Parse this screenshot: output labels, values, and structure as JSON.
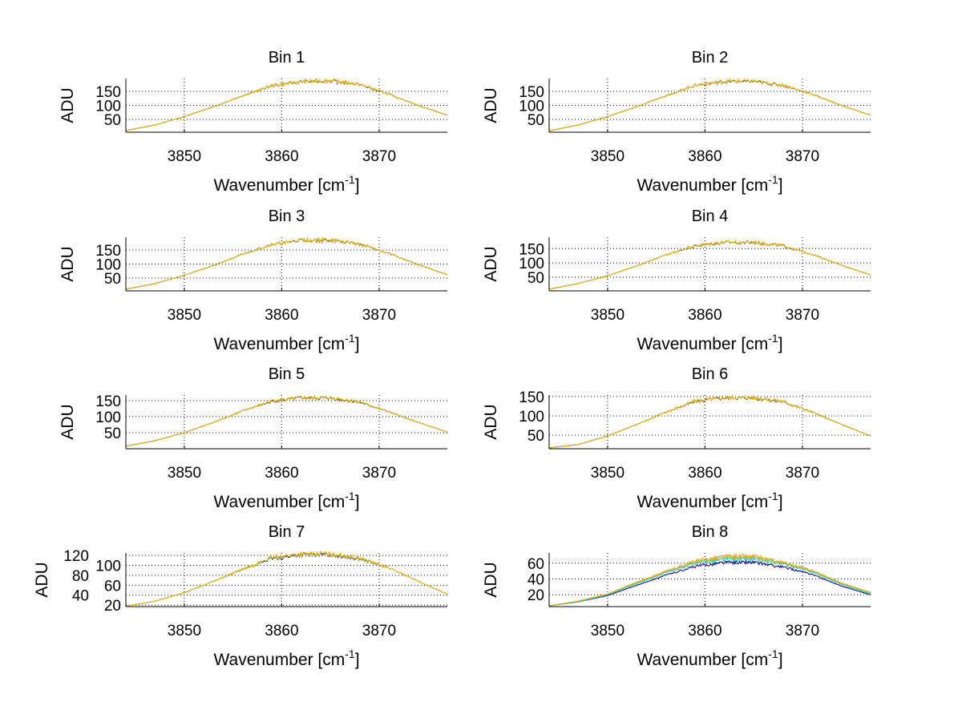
{
  "chart_data": [
    {
      "type": "line",
      "title": "Bin 1",
      "xlabel": "Wavenumber [cm",
      "xlabel_sup": "-1",
      "xlabel_end": "]",
      "ylabel": "ADU",
      "xlim": [
        3844,
        3877
      ],
      "ylim": [
        4,
        196
      ],
      "xticks": [
        3850,
        3860,
        3870
      ],
      "yticks": [
        50,
        100,
        150
      ],
      "grid": true,
      "x": [
        3844,
        3847,
        3850,
        3853,
        3856,
        3859,
        3862,
        3865,
        3868,
        3871,
        3874,
        3877
      ],
      "series": [
        {
          "name": "black",
          "color": "#000000",
          "values": [
            10,
            30,
            60,
            95,
            135,
            170,
            185,
            188,
            175,
            140,
            100,
            65
          ]
        },
        {
          "name": "yellow",
          "color": "#f5b800",
          "values": [
            10,
            30,
            60,
            95,
            135,
            170,
            186,
            189,
            176,
            140,
            100,
            65
          ]
        }
      ]
    },
    {
      "type": "line",
      "title": "Bin 2",
      "xlabel": "Wavenumber [cm",
      "xlabel_sup": "-1",
      "xlabel_end": "]",
      "ylabel": "ADU",
      "xlim": [
        3844,
        3877
      ],
      "ylim": [
        4,
        196
      ],
      "xticks": [
        3850,
        3860,
        3870
      ],
      "yticks": [
        50,
        100,
        150
      ],
      "grid": true,
      "x": [
        3844,
        3847,
        3850,
        3853,
        3856,
        3859,
        3862,
        3865,
        3868,
        3871,
        3874,
        3877
      ],
      "series": [
        {
          "name": "black",
          "color": "#000000",
          "values": [
            9,
            30,
            60,
            95,
            135,
            172,
            186,
            186,
            172,
            140,
            100,
            65
          ]
        },
        {
          "name": "yellow",
          "color": "#f5b800",
          "values": [
            9,
            30,
            60,
            95,
            135,
            172,
            187,
            187,
            173,
            140,
            100,
            65
          ]
        }
      ]
    },
    {
      "type": "line",
      "title": "Bin 3",
      "xlabel": "Wavenumber [cm",
      "xlabel_sup": "-1",
      "xlabel_end": "]",
      "ylabel": "ADU",
      "xlim": [
        3844,
        3877
      ],
      "ylim": [
        4,
        196
      ],
      "xticks": [
        3850,
        3860,
        3870
      ],
      "yticks": [
        50,
        100,
        150
      ],
      "grid": true,
      "x": [
        3844,
        3847,
        3850,
        3853,
        3856,
        3859,
        3862,
        3865,
        3868,
        3871,
        3874,
        3877
      ],
      "series": [
        {
          "name": "black",
          "color": "#000000",
          "values": [
            10,
            30,
            60,
            95,
            135,
            170,
            185,
            185,
            172,
            138,
            98,
            62
          ]
        },
        {
          "name": "yellow",
          "color": "#f5b800",
          "values": [
            10,
            30,
            60,
            95,
            135,
            170,
            186,
            186,
            173,
            138,
            98,
            62
          ]
        }
      ]
    },
    {
      "type": "line",
      "title": "Bin 4",
      "xlabel": "Wavenumber [cm",
      "xlabel_sup": "-1",
      "xlabel_end": "]",
      "ylabel": "ADU",
      "xlim": [
        3844,
        3877
      ],
      "ylim": [
        2,
        190
      ],
      "xticks": [
        3850,
        3860,
        3870
      ],
      "yticks": [
        50,
        100,
        150
      ],
      "grid": true,
      "x": [
        3844,
        3847,
        3850,
        3853,
        3856,
        3859,
        3862,
        3865,
        3868,
        3871,
        3874,
        3877
      ],
      "series": [
        {
          "name": "black",
          "color": "#000000",
          "values": [
            8,
            28,
            55,
            90,
            128,
            160,
            172,
            172,
            160,
            130,
            92,
            58
          ]
        },
        {
          "name": "yellow",
          "color": "#f5b800",
          "values": [
            8,
            28,
            55,
            90,
            128,
            161,
            173,
            173,
            161,
            130,
            92,
            58
          ]
        }
      ]
    },
    {
      "type": "line",
      "title": "Bin 5",
      "xlabel": "Wavenumber [cm",
      "xlabel_sup": "-1",
      "xlabel_end": "]",
      "ylabel": "ADU",
      "xlim": [
        3844,
        3877
      ],
      "ylim": [
        0,
        167
      ],
      "xticks": [
        3850,
        3860,
        3870
      ],
      "yticks": [
        50,
        100,
        150
      ],
      "grid": true,
      "x": [
        3844,
        3847,
        3850,
        3853,
        3856,
        3859,
        3862,
        3865,
        3868,
        3871,
        3874,
        3877
      ],
      "series": [
        {
          "name": "black",
          "color": "#000000",
          "values": [
            8,
            25,
            50,
            82,
            118,
            148,
            158,
            158,
            145,
            115,
            82,
            52
          ]
        },
        {
          "name": "yellow",
          "color": "#f5b800",
          "values": [
            8,
            25,
            50,
            82,
            118,
            149,
            159,
            159,
            146,
            115,
            82,
            52
          ]
        }
      ]
    },
    {
      "type": "line",
      "title": "Bin 6",
      "xlabel": "Wavenumber [cm",
      "xlabel_sup": "-1",
      "xlabel_end": "]",
      "ylabel": "ADU",
      "xlim": [
        3844,
        3877
      ],
      "ylim": [
        15,
        154
      ],
      "xticks": [
        3850,
        3860,
        3870
      ],
      "yticks": [
        50,
        100,
        150
      ],
      "grid": true,
      "x": [
        3844,
        3847,
        3850,
        3853,
        3856,
        3859,
        3862,
        3865,
        3868,
        3871,
        3874,
        3877
      ],
      "series": [
        {
          "name": "black",
          "color": "#000000",
          "values": [
            17,
            26,
            48,
            78,
            110,
            138,
            147,
            147,
            137,
            110,
            78,
            48
          ]
        },
        {
          "name": "yellow",
          "color": "#f5b800",
          "values": [
            17,
            26,
            48,
            78,
            110,
            139,
            148,
            148,
            138,
            110,
            78,
            48
          ]
        }
      ]
    },
    {
      "type": "line",
      "title": "Bin 7",
      "xlabel": "Wavenumber [cm",
      "xlabel_sup": "-1",
      "xlabel_end": "]",
      "ylabel": "ADU",
      "xlim": [
        3844,
        3877
      ],
      "ylim": [
        17,
        125
      ],
      "xticks": [
        3850,
        3860,
        3870
      ],
      "yticks": [
        20,
        40,
        60,
        80,
        100,
        120
      ],
      "grid": true,
      "x": [
        3844,
        3847,
        3850,
        3853,
        3856,
        3859,
        3862,
        3865,
        3868,
        3871,
        3874,
        3877
      ],
      "series": [
        {
          "name": "blue",
          "color": "#00008f",
          "values": [
            18,
            28,
            45,
            68,
            92,
            114,
            121,
            122,
            113,
            95,
            68,
            42
          ]
        },
        {
          "name": "green",
          "color": "#7fbf3f",
          "values": [
            18,
            28,
            45,
            68,
            92,
            115,
            122,
            123,
            114,
            95,
            68,
            42
          ]
        },
        {
          "name": "yellow",
          "color": "#f5b800",
          "values": [
            18,
            28,
            45,
            68,
            93,
            116,
            123,
            124,
            115,
            95,
            68,
            42
          ]
        }
      ]
    },
    {
      "type": "line",
      "title": "Bin 8",
      "xlabel": "Wavenumber [cm",
      "xlabel_sup": "-1",
      "xlabel_end": "]",
      "ylabel": "ADU",
      "xlim": [
        3844,
        3877
      ],
      "ylim": [
        5,
        73
      ],
      "xticks": [
        3850,
        3860,
        3870
      ],
      "yticks": [
        20,
        40,
        60
      ],
      "grid": true,
      "x": [
        3844,
        3847,
        3850,
        3853,
        3856,
        3859,
        3862,
        3865,
        3868,
        3871,
        3874,
        3877
      ],
      "series": [
        {
          "name": "blue",
          "color": "#00008f",
          "values": [
            6,
            11,
            19,
            32,
            45,
            56,
            61,
            61,
            55,
            46,
            31,
            20
          ]
        },
        {
          "name": "cyan",
          "color": "#20c8e0",
          "values": [
            6,
            11,
            20,
            34,
            48,
            60,
            65,
            65,
            59,
            49,
            33,
            21
          ]
        },
        {
          "name": "green",
          "color": "#8fd050",
          "values": [
            6,
            12,
            21,
            35,
            49,
            61,
            67,
            67,
            60,
            50,
            34,
            22
          ]
        },
        {
          "name": "orange",
          "color": "#f5a000",
          "values": [
            6,
            12,
            21,
            36,
            50,
            63,
            69,
            69,
            61,
            51,
            35,
            23
          ]
        }
      ]
    }
  ]
}
